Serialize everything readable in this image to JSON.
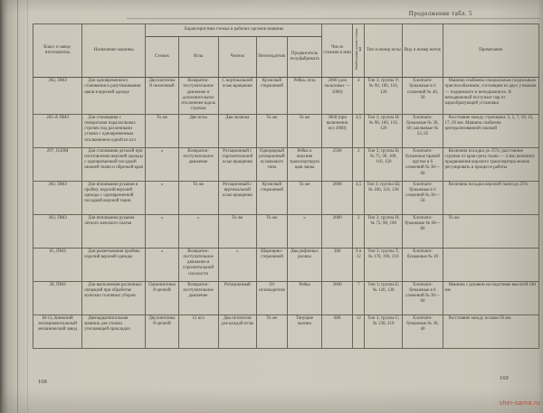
{
  "page": {
    "caption": "Продолжение табл. 5",
    "page_number_left": "168",
    "page_number_right": "169",
    "watermark": "shei-sama.ru",
    "colors": {
      "paper": "#cdc8bb",
      "ink": "#3e3a30",
      "watermark": "#b3392e"
    }
  },
  "table": {
    "headers": {
      "class": "Класс и завод-изготовитель",
      "purpose": "Назначение машины",
      "characteristics_span": "Характеристика стежка и рабочих органов машины",
      "stitch": "Стежок",
      "needle": "Игла",
      "shuttle": "Челнок",
      "takeup": "Нитепо­датчик",
      "feeder": "Продвига­тель полу­фабриката",
      "speed": "Число стежков в мин",
      "stitch_length": "Наибольшая длина стежка, мм",
      "needle_type": "Тип и номер иглы",
      "thread": "Вид и номер ниток",
      "note": "Примечание"
    },
    "rows": [
      {
        "class": "302, ПМЗ",
        "purpose": "Для одновременного стачивания и разутюживания швов в верхней одежде",
        "stitch": "Двухниточный челночный",
        "needle": "Возвратно-поступательное движение и дополнительное отклонение вдоль строчки",
        "shuttle": "С вертикальной осью вращения",
        "takeup": "Кулисный стержневой",
        "feeder": "Рейка, игла",
        "speed": "2000 (для пальтовых — 2000)",
        "stitch_length": "4",
        "needle_type": "Тип 3; группа У; № 90, 100, 110, 120",
        "thread": "Хлопчато­бумажные в 6 сложений № 40, 30",
        "note": "Машина снабжена специальным гладильным приспособлением, состоящим из двух утюжков — подвижного и неподвижного. В неподвижный поступает пар от парообразующей установки"
      },
      {
        "class": "265-А ПМЗ",
        "purpose": "Для стачивания с поворотами параллельных строчек под различными углами с одновременным отключением одной из игл",
        "stitch": "То же",
        "needle": "Две иглы",
        "shuttle": "Два челнока",
        "takeup": "То же",
        "feeder": "То же",
        "speed": "3000 (при включении игл 2000)",
        "stitch_length": "4,5",
        "needle_type": "Тип 3; группа Н; № 90, 100, 110, 120",
        "thread": "Хлопчато­бумажные № 30, 60; шелковые № 33, 65",
        "note": "Расстояние между строчками: 3, 5, 7, 10, 15, 17, 20 мм. Машина снабжена централизованной смазкой"
      },
      {
        "class": "297, ОЗЛМ",
        "purpose": "Для стачивания деталей при изготовлении верхней одежды с одновременной посадкой нижней ткани и обрезкой края",
        "stitch": "»",
        "needle": "Возвратно-поступательное движение",
        "shuttle": "Ротационный с горизонтальной осью вращения",
        "takeup": "Однорядный ротационный кулачкового типа",
        "feeder": "Рейка и верхняя транспортирующая лапка",
        "speed": "2500",
        "stitch_length": "3",
        "needle_type": "Тип 3; группа В; № 75, 90, 100, 110, 120",
        "thread": "Хлопчато­бумажные правой крутки в 6 сложений № 30—60",
        "note": "Величина посадки до 25%; расстояние строчки от края среза ткани — 4 мм; величину продвижения верхнего транспортера можно регулировать в процессе работы"
      },
      {
        "class": "202, ПМЗ",
        "purpose": "Для втачивания рукавов в пройму изделий верхней одежды с одновременной посадкой верхней ткани",
        "stitch": "»",
        "needle": "То же",
        "shuttle": "Ротационный с вертикальной осью вращения",
        "takeup": "Кулисный стержневой",
        "feeder": "То же",
        "speed": "2000",
        "stitch_length": "4,5",
        "needle_type": "Тип 3; группа Ш; № 100, 110, 130",
        "thread": "Хлопчато­бумажные в 6 сложений № 30—50",
        "note": "Величина посадки верхней ткани до 25%"
      },
      {
        "class": "302, ПМЗ",
        "purpose": "Для втачивания рукавов легкого женского платья",
        "stitch": "»",
        "needle": "»",
        "shuttle": "То же",
        "takeup": "То же",
        "feeder": "»",
        "speed": "2000",
        "stitch_length": "2",
        "needle_type": "Тип 3; группа Н; № 75, 90, 100",
        "thread": "Хлопчато­бумажные № 60—80",
        "note": "То же"
      },
      {
        "class": "65, ПМЗ",
        "purpose": "Для разметывания проймы изделий верхней одежды",
        "stitch": "»",
        "needle": "Возвратно-поступательное движение в горизонтальной плоскости",
        "shuttle": "»",
        "takeup": "Шарнирно-стержневой",
        "feeder": "Два рифленых ролика",
        "speed": "300",
        "stitch_length": "9 и 12",
        "needle_type": "Тип 3; группа Т; № 170, 190, 210",
        "thread": "Хлопчато­бумажные № 10",
        "note": ""
      },
      {
        "class": "28, ПМЗ",
        "purpose": "Для выполнения различных операций при обработке мужских головных уборов",
        "stitch": "Однониточный цепной",
        "needle": "Возвратно-поступательное движение",
        "shuttle": "Ротационный",
        "takeup": "От игловодителя",
        "feeder": "Рейка",
        "speed": "3000",
        "stitch_length": "7",
        "needle_type": "Тип 3; группа Б; № 120, 130",
        "thread": "Хлопчато­бумажные в 6 сложений № 30—60",
        "note": "Машина с рукавом на подставке высотой 160 мм"
      },
      {
        "class": "М-12, Киевский экспериментальный механический завод",
        "purpose": "Двенадцатиигольная машина для стежки утепляющей прокладки",
        "stitch": "Двухниточный цепной",
        "needle": "12 игл",
        "shuttle": "Два петлителя для каждой иглы",
        "takeup": "То же",
        "feeder": "Тянущие валики",
        "speed": "600",
        "stitch_length": "12",
        "needle_type": "Тип 3; группа С; № 130, 210",
        "thread": "Хлопчато­бумажные № 30, 40",
        "note": "Расстояние между иглами 50 мм"
      }
    ]
  }
}
